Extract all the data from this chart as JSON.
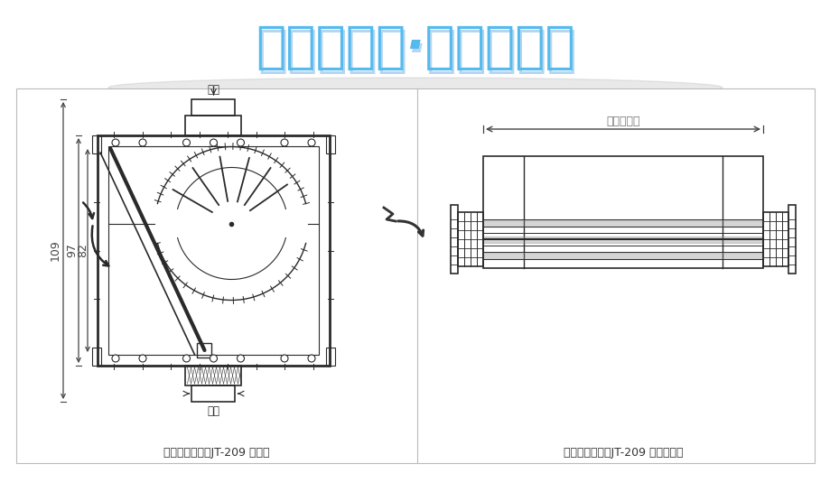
{
  "title": "空气要清新·家泰更贴心",
  "title_color_top": "#55BBEE",
  "title_color_bot": "#1177CC",
  "bg_color": "#ffffff",
  "line_color": "#2a2a2a",
  "dim_color": "#444444",
  "label1": "门窗自然通风器JT-209 节点图",
  "label2": "门窗自然通风器JT-209 俯视节点图",
  "ke_tiao": "可调",
  "full_length": "通风器全长",
  "d109": "109",
  "d97": "97",
  "d82": "82",
  "panel_border": "#bbbbbb",
  "shadow_color": "#cccccc"
}
